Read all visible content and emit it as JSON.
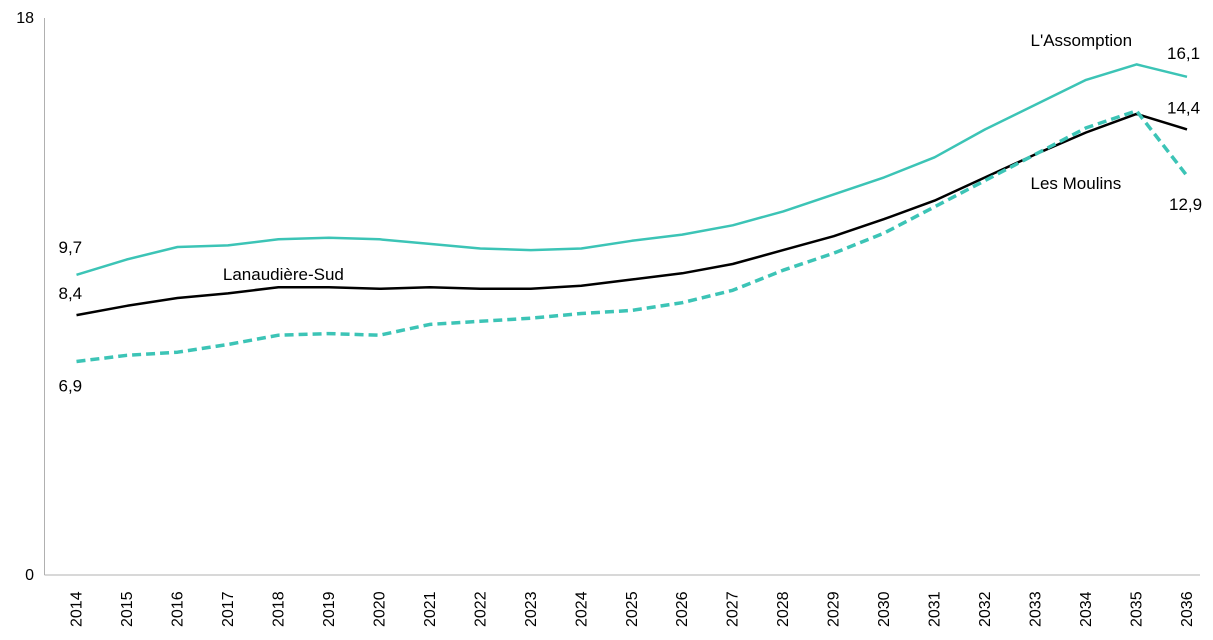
{
  "chart_data": {
    "type": "line",
    "title": "",
    "xlabel": "",
    "ylabel": "",
    "ylim": [
      0,
      18
    ],
    "yticks": [
      "0",
      "18"
    ],
    "grid": false,
    "legend": "none",
    "categories": [
      "2014",
      "2015",
      "2016",
      "2017",
      "2018",
      "2019",
      "2020",
      "2021",
      "2022",
      "2023",
      "2024",
      "2025",
      "2026",
      "2027",
      "2028",
      "2029",
      "2030",
      "2031",
      "2032",
      "2033",
      "2034",
      "2035",
      "2036"
    ],
    "series": [
      {
        "name": "L'Assomption",
        "color": "#3cc4b6",
        "dash": false,
        "values": [
          9.7,
          10.2,
          10.6,
          10.65,
          10.85,
          10.9,
          10.85,
          10.7,
          10.55,
          10.5,
          10.55,
          10.8,
          11.0,
          11.3,
          11.75,
          12.3,
          12.85,
          13.5,
          14.4,
          15.2,
          16.0,
          16.5,
          16.1
        ]
      },
      {
        "name": "Lanaudière-Sud",
        "color": "#000000",
        "dash": false,
        "values": [
          8.4,
          8.7,
          8.95,
          9.1,
          9.3,
          9.3,
          9.25,
          9.3,
          9.25,
          9.25,
          9.35,
          9.55,
          9.75,
          10.05,
          10.5,
          10.95,
          11.5,
          12.1,
          12.85,
          13.6,
          14.3,
          14.9,
          14.4
        ]
      },
      {
        "name": "Les Moulins",
        "color": "#3cc4b6",
        "dash": true,
        "values": [
          6.9,
          7.1,
          7.2,
          7.45,
          7.75,
          7.8,
          7.75,
          8.1,
          8.2,
          8.3,
          8.45,
          8.55,
          8.8,
          9.2,
          9.85,
          10.4,
          11.05,
          11.9,
          12.75,
          13.6,
          14.45,
          15.0,
          12.9
        ]
      }
    ],
    "data_labels": [
      {
        "series": 0,
        "index": 0,
        "text": "9,7"
      },
      {
        "series": 0,
        "index": 22,
        "text": "16,1"
      },
      {
        "series": 1,
        "index": 0,
        "text": "8,4"
      },
      {
        "series": 1,
        "index": 22,
        "text": "14,4"
      },
      {
        "series": 2,
        "index": 0,
        "text": "6,9"
      },
      {
        "series": 2,
        "index": 22,
        "text": "12,9"
      }
    ],
    "series_labels": [
      {
        "series": 0,
        "text": "L'Assomption"
      },
      {
        "series": 1,
        "text": "Lanaudière-Sud"
      },
      {
        "series": 2,
        "text": "Les Moulins"
      }
    ]
  }
}
